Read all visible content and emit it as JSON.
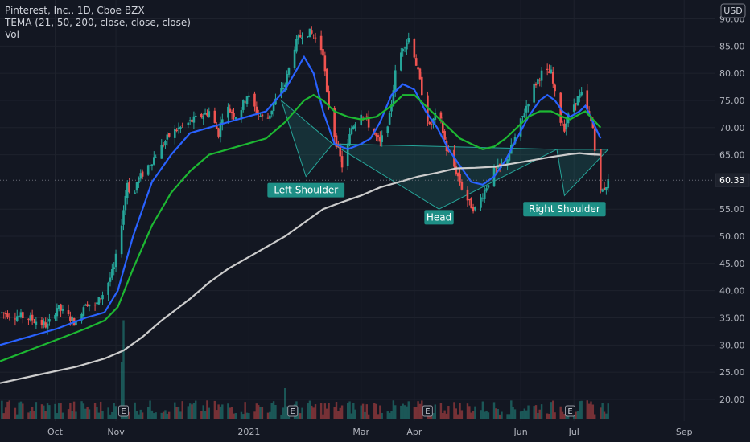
{
  "chart_data": {
    "type": "candlestick",
    "title": "Pinterest, Inc., 1D, Cboe BZX",
    "indicator_label": "TEMA (21, 50, 200, close, close, close)",
    "volume_label": "Vol",
    "currency": "USD",
    "current_price": "60.33",
    "ylim": [
      16,
      92
    ],
    "y_ticks": [
      "90.00",
      "85.00",
      "80.00",
      "75.00",
      "70.00",
      "65.00",
      "60.00",
      "55.00",
      "50.00",
      "45.00",
      "40.00",
      "35.00",
      "30.00",
      "25.00",
      "20.00"
    ],
    "y_tick_values": [
      90,
      85,
      80,
      75,
      70,
      65,
      60,
      55,
      50,
      45,
      40,
      35,
      30,
      25,
      20
    ],
    "x_ticks": [
      "Oct",
      "Nov",
      "2021",
      "Mar",
      "Apr",
      "Jun",
      "Jul",
      "Sep"
    ],
    "x_tick_days": [
      29,
      61,
      131,
      190,
      218,
      274,
      302,
      360
    ],
    "x_range_days": [
      0,
      376
    ],
    "price_path": [
      [
        0,
        36
      ],
      [
        15,
        35
      ],
      [
        25,
        33.5
      ],
      [
        30,
        37
      ],
      [
        40,
        34
      ],
      [
        45,
        38
      ],
      [
        50,
        37
      ],
      [
        55,
        40
      ],
      [
        60,
        44
      ],
      [
        62,
        48
      ],
      [
        65,
        55
      ],
      [
        67,
        60
      ],
      [
        70,
        56
      ],
      [
        72,
        60
      ],
      [
        80,
        64
      ],
      [
        90,
        69
      ],
      [
        100,
        71
      ],
      [
        110,
        73
      ],
      [
        115,
        69
      ],
      [
        118,
        74
      ],
      [
        125,
        72
      ],
      [
        130,
        76
      ],
      [
        135,
        73
      ],
      [
        140,
        71
      ],
      [
        145,
        75
      ],
      [
        150,
        78
      ],
      [
        155,
        85
      ],
      [
        160,
        88
      ],
      [
        165,
        87
      ],
      [
        170,
        84
      ],
      [
        172,
        76
      ],
      [
        175,
        70
      ],
      [
        180,
        63
      ],
      [
        182,
        65
      ],
      [
        185,
        70
      ],
      [
        190,
        73
      ],
      [
        195,
        70
      ],
      [
        200,
        67
      ],
      [
        205,
        72
      ],
      [
        208,
        80
      ],
      [
        212,
        85
      ],
      [
        216,
        87
      ],
      [
        220,
        80
      ],
      [
        223,
        75
      ],
      [
        226,
        70
      ],
      [
        229,
        72
      ],
      [
        232,
        71
      ],
      [
        235,
        66
      ],
      [
        240,
        62
      ],
      [
        243,
        59
      ],
      [
        247,
        56
      ],
      [
        250,
        55
      ],
      [
        253,
        57
      ],
      [
        257,
        60
      ],
      [
        260,
        62
      ],
      [
        265,
        63
      ],
      [
        270,
        67
      ],
      [
        275,
        72
      ],
      [
        280,
        77
      ],
      [
        285,
        80
      ],
      [
        290,
        80
      ],
      [
        292,
        76
      ],
      [
        294,
        72
      ],
      [
        297,
        70
      ],
      [
        300,
        73
      ],
      [
        303,
        75
      ],
      [
        306,
        76
      ],
      [
        309,
        73
      ],
      [
        312,
        70
      ],
      [
        314,
        63
      ],
      [
        316,
        58
      ],
      [
        320,
        60
      ]
    ],
    "series": [
      {
        "name": "TEMA 21",
        "color": "#2962ff",
        "values": [
          [
            0,
            30
          ],
          [
            15,
            31.5
          ],
          [
            30,
            33
          ],
          [
            45,
            35
          ],
          [
            55,
            36
          ],
          [
            62,
            40
          ],
          [
            70,
            50
          ],
          [
            80,
            60
          ],
          [
            90,
            65
          ],
          [
            100,
            69
          ],
          [
            110,
            70
          ],
          [
            120,
            71
          ],
          [
            130,
            72
          ],
          [
            140,
            73
          ],
          [
            150,
            77
          ],
          [
            160,
            83
          ],
          [
            165,
            80
          ],
          [
            170,
            73
          ],
          [
            176,
            67
          ],
          [
            183,
            66
          ],
          [
            190,
            67
          ],
          [
            195,
            68
          ],
          [
            200,
            71
          ],
          [
            206,
            76
          ],
          [
            212,
            78
          ],
          [
            218,
            77
          ],
          [
            224,
            73
          ],
          [
            230,
            70
          ],
          [
            236,
            66
          ],
          [
            242,
            63
          ],
          [
            248,
            60
          ],
          [
            254,
            59.5
          ],
          [
            260,
            61
          ],
          [
            266,
            64
          ],
          [
            272,
            68
          ],
          [
            278,
            72
          ],
          [
            284,
            75
          ],
          [
            288,
            76
          ],
          [
            292,
            75
          ],
          [
            296,
            73
          ],
          [
            300,
            72
          ],
          [
            305,
            73
          ],
          [
            308,
            74
          ],
          [
            312,
            71
          ],
          [
            316,
            68
          ]
        ]
      },
      {
        "name": "TEMA 50",
        "color": "#089981",
        "line_color": "#1db832",
        "values": [
          [
            0,
            27
          ],
          [
            15,
            29
          ],
          [
            30,
            31
          ],
          [
            45,
            33
          ],
          [
            55,
            34.5
          ],
          [
            62,
            37
          ],
          [
            70,
            44
          ],
          [
            80,
            52
          ],
          [
            90,
            58
          ],
          [
            100,
            62
          ],
          [
            110,
            65
          ],
          [
            120,
            66
          ],
          [
            130,
            67
          ],
          [
            140,
            68
          ],
          [
            150,
            71
          ],
          [
            160,
            75
          ],
          [
            165,
            76
          ],
          [
            170,
            75
          ],
          [
            176,
            73
          ],
          [
            183,
            72
          ],
          [
            190,
            71.5
          ],
          [
            198,
            72
          ],
          [
            206,
            74
          ],
          [
            212,
            76
          ],
          [
            218,
            76
          ],
          [
            224,
            74
          ],
          [
            230,
            72
          ],
          [
            236,
            70
          ],
          [
            242,
            68
          ],
          [
            248,
            67
          ],
          [
            254,
            66
          ],
          [
            260,
            66.5
          ],
          [
            266,
            68
          ],
          [
            272,
            70
          ],
          [
            278,
            72
          ],
          [
            284,
            73
          ],
          [
            290,
            73
          ],
          [
            296,
            72
          ],
          [
            300,
            71.5
          ],
          [
            305,
            72.5
          ],
          [
            308,
            73
          ],
          [
            312,
            71.5
          ],
          [
            316,
            70
          ]
        ]
      },
      {
        "name": "TEMA 200",
        "color": "#cccccc",
        "values": [
          [
            0,
            23
          ],
          [
            20,
            24.5
          ],
          [
            40,
            26
          ],
          [
            55,
            27.5
          ],
          [
            65,
            29
          ],
          [
            75,
            31.5
          ],
          [
            85,
            34.5
          ],
          [
            100,
            38.5
          ],
          [
            110,
            41.5
          ],
          [
            120,
            44
          ],
          [
            130,
            46
          ],
          [
            140,
            48
          ],
          [
            150,
            50
          ],
          [
            160,
            52.5
          ],
          [
            170,
            55
          ],
          [
            180,
            56.3
          ],
          [
            190,
            57.5
          ],
          [
            200,
            59
          ],
          [
            210,
            60
          ],
          [
            220,
            61
          ],
          [
            230,
            61.7
          ],
          [
            240,
            62.5
          ],
          [
            250,
            62.6
          ],
          [
            260,
            62.8
          ],
          [
            270,
            63.4
          ],
          [
            280,
            64
          ],
          [
            290,
            64.6
          ],
          [
            300,
            65.1
          ],
          [
            305,
            65.3
          ],
          [
            310,
            65.1
          ],
          [
            316,
            65
          ]
        ]
      }
    ],
    "pattern": {
      "label_left": "Left Shoulder",
      "label_head": "Head",
      "label_right": "Right Shoulder",
      "fill_color": "#26a69a",
      "triangles": [
        [
          [
            148,
            75
          ],
          [
            161,
            61
          ],
          [
            175,
            67
          ]
        ],
        [
          [
            175,
            67
          ],
          [
            231,
            55
          ],
          [
            293,
            66
          ]
        ],
        [
          [
            293,
            66
          ],
          [
            297,
            57.5
          ],
          [
            320,
            66
          ]
        ]
      ],
      "label_points": [
        [
          161,
          58.5
        ],
        [
          231,
          53.5
        ],
        [
          297,
          55
        ]
      ]
    },
    "earnings_days": [
      65,
      154,
      225,
      300
    ],
    "earnings_marker": "E",
    "volume_spikes": [
      [
        65,
        0.95
      ],
      [
        64,
        0.55
      ],
      [
        150,
        0.3
      ],
      [
        224,
        0.55
      ],
      [
        300,
        0.65
      ]
    ],
    "colors": {
      "up": "#26a69a",
      "down": "#ef5350",
      "background": "#131722",
      "grid": "#1e222d",
      "text": "#b2b5be"
    }
  }
}
